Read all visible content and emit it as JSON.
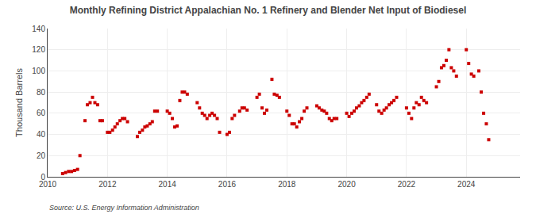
{
  "chart_data": {
    "type": "scatter",
    "title": "Monthly Refining District Appalachian No. 1 Refinery and Blender Net Input of Biodiesel",
    "ylabel": "Thousand Barrels",
    "source": "Source: U.S. Energy Information Administration",
    "color": "#cc0000",
    "marker": "square",
    "grid": true,
    "xlim": [
      2010.0,
      2025.8
    ],
    "ylim": [
      0,
      140
    ],
    "xticks": [
      2010,
      2012,
      2014,
      2016,
      2018,
      2020,
      2022,
      2024
    ],
    "yticks": [
      0,
      20,
      40,
      60,
      80,
      100,
      120,
      140
    ],
    "x": [
      2010.5,
      2010.6,
      2010.7,
      2010.8,
      2010.9,
      2011.0,
      2011.08,
      2011.25,
      2011.33,
      2011.42,
      2011.5,
      2011.58,
      2011.67,
      2011.75,
      2011.83,
      2012.0,
      2012.08,
      2012.17,
      2012.25,
      2012.33,
      2012.42,
      2012.5,
      2012.58,
      2012.67,
      2013.0,
      2013.08,
      2013.17,
      2013.25,
      2013.33,
      2013.42,
      2013.5,
      2013.58,
      2013.67,
      2014.0,
      2014.08,
      2014.17,
      2014.25,
      2014.33,
      2014.42,
      2014.5,
      2014.58,
      2014.67,
      2015.0,
      2015.08,
      2015.17,
      2015.25,
      2015.33,
      2015.42,
      2015.5,
      2015.58,
      2015.67,
      2015.75,
      2016.0,
      2016.08,
      2016.17,
      2016.25,
      2016.42,
      2016.5,
      2016.58,
      2016.67,
      2017.0,
      2017.08,
      2017.17,
      2017.25,
      2017.33,
      2017.5,
      2017.58,
      2017.67,
      2017.75,
      2018.0,
      2018.08,
      2018.17,
      2018.25,
      2018.33,
      2018.42,
      2018.5,
      2018.58,
      2018.67,
      2019.0,
      2019.08,
      2019.17,
      2019.25,
      2019.33,
      2019.42,
      2019.5,
      2019.58,
      2019.67,
      2020.0,
      2020.08,
      2020.17,
      2020.25,
      2020.33,
      2020.42,
      2020.5,
      2020.58,
      2020.67,
      2020.75,
      2021.0,
      2021.08,
      2021.17,
      2021.25,
      2021.33,
      2021.42,
      2021.5,
      2021.58,
      2021.67,
      2022.0,
      2022.08,
      2022.17,
      2022.25,
      2022.33,
      2022.42,
      2022.5,
      2022.58,
      2022.67,
      2023.0,
      2023.08,
      2023.17,
      2023.25,
      2023.33,
      2023.42,
      2023.5,
      2023.58,
      2023.67,
      2024.0,
      2024.08,
      2024.17,
      2024.25,
      2024.42,
      2024.5,
      2024.58,
      2024.67,
      2024.75
    ],
    "values": [
      3,
      4,
      5,
      5,
      6,
      7,
      20,
      53,
      68,
      70,
      75,
      70,
      68,
      53,
      53,
      42,
      42,
      44,
      47,
      50,
      53,
      55,
      55,
      52,
      38,
      42,
      44,
      47,
      48,
      50,
      52,
      62,
      62,
      62,
      60,
      55,
      47,
      48,
      72,
      80,
      80,
      78,
      70,
      65,
      60,
      58,
      55,
      58,
      60,
      58,
      55,
      42,
      40,
      42,
      55,
      58,
      62,
      65,
      65,
      63,
      75,
      78,
      65,
      60,
      63,
      92,
      78,
      77,
      75,
      62,
      58,
      50,
      50,
      47,
      52,
      55,
      62,
      65,
      67,
      65,
      63,
      62,
      60,
      55,
      53,
      55,
      55,
      60,
      57,
      60,
      62,
      65,
      67,
      70,
      72,
      75,
      78,
      68,
      62,
      60,
      63,
      65,
      68,
      70,
      72,
      75,
      65,
      60,
      55,
      65,
      70,
      68,
      75,
      72,
      70,
      85,
      90,
      103,
      105,
      110,
      120,
      103,
      100,
      95,
      120,
      107,
      97,
      95,
      100,
      80,
      60,
      50,
      35
    ]
  }
}
